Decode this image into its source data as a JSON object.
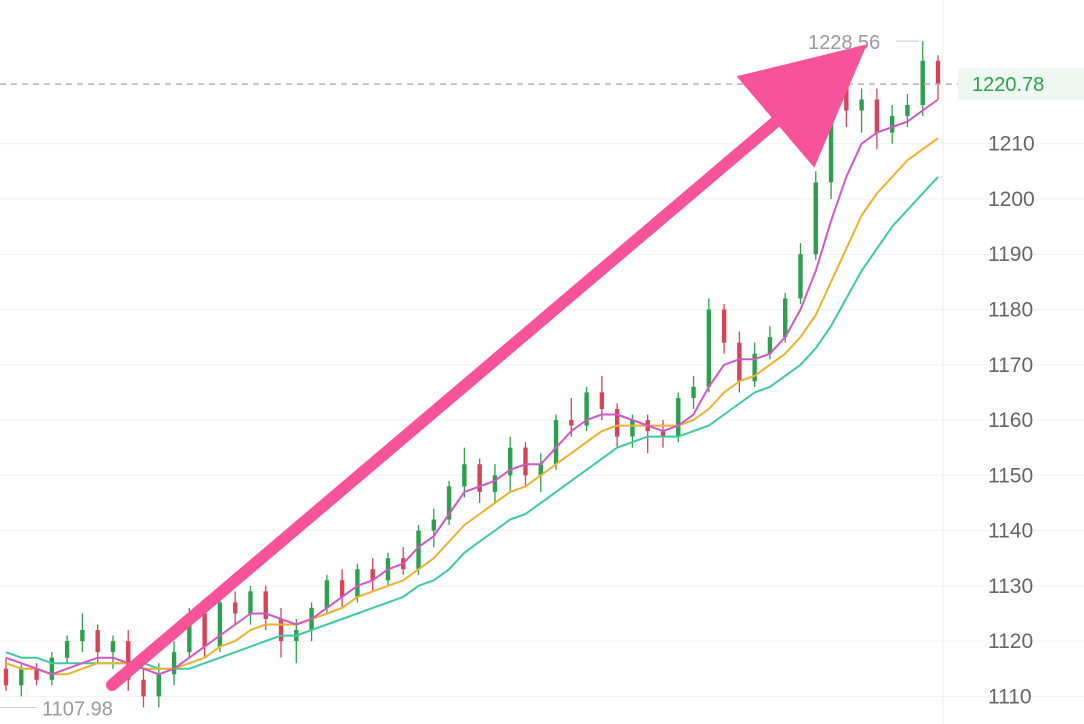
{
  "chart_data": {
    "type": "candlestick",
    "ylim": [
      1105,
      1236
    ],
    "y_ticks": [
      1110,
      1120,
      1130,
      1140,
      1150,
      1160,
      1170,
      1180,
      1190,
      1200,
      1210
    ],
    "y_tick_labels": [
      "1110",
      "1120",
      "1130",
      "1140",
      "1150",
      "1160",
      "1170",
      "1180",
      "1190",
      "1200",
      "1210"
    ],
    "grid": true,
    "current_price": 1220.78,
    "current_price_label": "1220.78",
    "max_label": "1228.56",
    "min_label": "1107.98",
    "colors": {
      "up": "#2e9e4f",
      "down": "#d6435a",
      "ma_short": "#d158c4",
      "ma_mid": "#e9b22f",
      "ma_long": "#3ec9a4",
      "arrow": "#f6539a",
      "price_line": "#b5b5b5",
      "price_tag_text": "#2e9e4f",
      "price_tag_bg": "#eef7f1"
    },
    "candles": [
      [
        1115,
        1117,
        1111,
        1112
      ],
      [
        1112,
        1116,
        1110,
        1115
      ],
      [
        1115,
        1116,
        1112,
        1113
      ],
      [
        1113,
        1118,
        1112,
        1117
      ],
      [
        1117,
        1121,
        1116,
        1120
      ],
      [
        1120,
        1125,
        1118,
        1122
      ],
      [
        1122,
        1123,
        1116,
        1118
      ],
      [
        1118,
        1121,
        1115,
        1120
      ],
      [
        1120,
        1122,
        1111,
        1113
      ],
      [
        1113,
        1115,
        1108,
        1110
      ],
      [
        1110,
        1116,
        1108,
        1114
      ],
      [
        1114,
        1120,
        1112,
        1118
      ],
      [
        1118,
        1126,
        1117,
        1125
      ],
      [
        1125,
        1126,
        1117,
        1119
      ],
      [
        1119,
        1128,
        1118,
        1127
      ],
      [
        1127,
        1129,
        1123,
        1125
      ],
      [
        1125,
        1130,
        1123,
        1129
      ],
      [
        1129,
        1130,
        1122,
        1124
      ],
      [
        1124,
        1126,
        1117,
        1120
      ],
      [
        1120,
        1124,
        1116,
        1122
      ],
      [
        1122,
        1127,
        1120,
        1126
      ],
      [
        1126,
        1132,
        1125,
        1131
      ],
      [
        1131,
        1133,
        1126,
        1128
      ],
      [
        1128,
        1134,
        1127,
        1133
      ],
      [
        1133,
        1135,
        1129,
        1131
      ],
      [
        1131,
        1136,
        1130,
        1135
      ],
      [
        1135,
        1137,
        1132,
        1133
      ],
      [
        1133,
        1141,
        1132,
        1140
      ],
      [
        1140,
        1144,
        1137,
        1142
      ],
      [
        1142,
        1149,
        1141,
        1148
      ],
      [
        1148,
        1155,
        1146,
        1152
      ],
      [
        1152,
        1153,
        1145,
        1147
      ],
      [
        1147,
        1152,
        1145,
        1150
      ],
      [
        1150,
        1157,
        1147,
        1155
      ],
      [
        1155,
        1156,
        1148,
        1150
      ],
      [
        1150,
        1154,
        1147,
        1152
      ],
      [
        1152,
        1161,
        1151,
        1160
      ],
      [
        1160,
        1164,
        1157,
        1159
      ],
      [
        1159,
        1166,
        1158,
        1165
      ],
      [
        1165,
        1168,
        1160,
        1162
      ],
      [
        1162,
        1163,
        1155,
        1157
      ],
      [
        1157,
        1161,
        1155,
        1160
      ],
      [
        1160,
        1161,
        1154,
        1158
      ],
      [
        1158,
        1160,
        1155,
        1157
      ],
      [
        1157,
        1165,
        1156,
        1164
      ],
      [
        1164,
        1168,
        1162,
        1166
      ],
      [
        1166,
        1182,
        1165,
        1180
      ],
      [
        1180,
        1181,
        1172,
        1174
      ],
      [
        1174,
        1176,
        1165,
        1167
      ],
      [
        1167,
        1174,
        1166,
        1172
      ],
      [
        1172,
        1177,
        1171,
        1175
      ],
      [
        1175,
        1183,
        1174,
        1182
      ],
      [
        1182,
        1192,
        1181,
        1190
      ],
      [
        1190,
        1205,
        1189,
        1203
      ],
      [
        1203,
        1224,
        1200,
        1222
      ],
      [
        1222,
        1225,
        1213,
        1216
      ],
      [
        1216,
        1220,
        1212,
        1218
      ],
      [
        1218,
        1220,
        1209,
        1212
      ],
      [
        1212,
        1217,
        1210,
        1215
      ],
      [
        1215,
        1219,
        1213,
        1217
      ],
      [
        1217,
        1228.56,
        1215,
        1225
      ],
      [
        1225,
        1226,
        1218,
        1220.78
      ]
    ],
    "ma_short": [
      1117,
      1116,
      1115,
      1114,
      1115,
      1116,
      1117,
      1117,
      1116,
      1115,
      1114,
      1115,
      1117,
      1119,
      1121,
      1123,
      1125,
      1125,
      1124,
      1123,
      1124,
      1126,
      1128,
      1130,
      1131,
      1133,
      1134,
      1137,
      1139,
      1143,
      1147,
      1148,
      1149,
      1151,
      1152,
      1152,
      1155,
      1158,
      1160,
      1161,
      1161,
      1160,
      1159,
      1158,
      1159,
      1161,
      1166,
      1170,
      1171,
      1171,
      1172,
      1175,
      1180,
      1187,
      1196,
      1204,
      1210,
      1212,
      1213,
      1214,
      1216,
      1218
    ],
    "ma_mid": [
      1116,
      1115,
      1115,
      1114,
      1114,
      1115,
      1116,
      1116,
      1116,
      1115,
      1115,
      1115,
      1116,
      1117,
      1119,
      1120,
      1122,
      1123,
      1123,
      1123,
      1124,
      1125,
      1126,
      1128,
      1129,
      1130,
      1131,
      1133,
      1135,
      1138,
      1141,
      1143,
      1145,
      1147,
      1148,
      1150,
      1152,
      1154,
      1156,
      1158,
      1159,
      1159,
      1159,
      1159,
      1159,
      1160,
      1162,
      1165,
      1167,
      1168,
      1170,
      1172,
      1175,
      1179,
      1185,
      1191,
      1197,
      1201,
      1204,
      1207,
      1209,
      1211
    ],
    "ma_long": [
      1118,
      1117,
      1117,
      1116,
      1116,
      1116,
      1116,
      1116,
      1116,
      1116,
      1115,
      1115,
      1115,
      1116,
      1117,
      1118,
      1119,
      1120,
      1121,
      1121,
      1122,
      1123,
      1124,
      1125,
      1126,
      1127,
      1128,
      1130,
      1131,
      1133,
      1136,
      1138,
      1140,
      1142,
      1143,
      1145,
      1147,
      1149,
      1151,
      1153,
      1155,
      1156,
      1157,
      1157,
      1157,
      1158,
      1159,
      1161,
      1163,
      1165,
      1166,
      1168,
      1170,
      1173,
      1177,
      1182,
      1187,
      1191,
      1195,
      1198,
      1201,
      1204
    ]
  }
}
